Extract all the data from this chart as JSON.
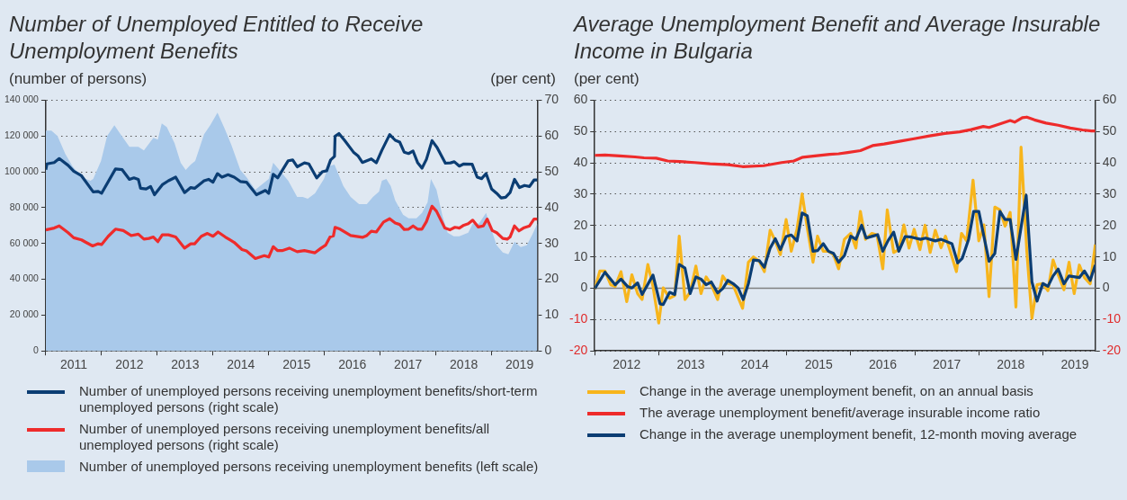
{
  "chart_data": [
    {
      "type": "line",
      "title": "Number of Unemployed Entitled to Receive Unemployment Benefits",
      "ylabel": "(number of persons)",
      "y2label": "(per cent)",
      "xlim": [
        2011,
        2019.82
      ],
      "xticks": [
        {
          "value": 2011,
          "label": null
        },
        {
          "value": 2011.5,
          "label": "2011"
        },
        {
          "value": 2012,
          "label": null
        },
        {
          "value": 2012.5,
          "label": "2012"
        },
        {
          "value": 2013,
          "label": null
        },
        {
          "value": 2013.5,
          "label": "2013"
        },
        {
          "value": 2014,
          "label": null
        },
        {
          "value": 2014.5,
          "label": "2014"
        },
        {
          "value": 2015,
          "label": null
        },
        {
          "value": 2015.5,
          "label": "2015"
        },
        {
          "value": 2016,
          "label": null
        },
        {
          "value": 2016.5,
          "label": "2016"
        },
        {
          "value": 2017,
          "label": null
        },
        {
          "value": 2017.5,
          "label": "2017"
        },
        {
          "value": 2018,
          "label": null
        },
        {
          "value": 2018.5,
          "label": "2018"
        },
        {
          "value": 2019,
          "label": null
        },
        {
          "value": 2019.5,
          "label": "2019"
        }
      ],
      "ylim": [
        0,
        140000
      ],
      "yticks": [
        0,
        {
          "value": 20000,
          "label": "20 000"
        },
        {
          "value": 40000,
          "label": "40 000"
        },
        {
          "value": 60000,
          "label": "60 000"
        },
        {
          "value": 80000,
          "label": "80 000"
        },
        {
          "value": 100000,
          "label": "100 000"
        },
        {
          "value": 120000,
          "label": "120 000"
        },
        {
          "value": 140000,
          "label": "140 000"
        }
      ],
      "y2lim": [
        0,
        70
      ],
      "y2ticks": [
        0,
        10,
        20,
        30,
        40,
        50,
        60,
        70
      ],
      "grid": "y",
      "legend": "bottom",
      "series": [
        {
          "name": "Number of unemployed persons receiving unemployment benefits/short-term unemployed persons (right scale)",
          "type": "line",
          "axis": "y2",
          "color": "#0b3d73",
          "x": [
            2011.0,
            2011.02,
            2011.15,
            2011.24,
            2011.4,
            2011.5,
            2011.64,
            2011.85,
            2011.94,
            2012.0,
            2012.25,
            2012.37,
            2012.5,
            2012.58,
            2012.66,
            2012.7,
            2012.8,
            2012.88,
            2012.95,
            2013.09,
            2013.2,
            2013.33,
            2013.49,
            2013.6,
            2013.67,
            2013.84,
            2013.92,
            2014.0,
            2014.08,
            2014.16,
            2014.27,
            2014.38,
            2014.49,
            2014.6,
            2014.78,
            2014.94,
            2015.0,
            2015.08,
            2015.16,
            2015.35,
            2015.43,
            2015.51,
            2015.64,
            2015.72,
            2015.86,
            2015.96,
            2016.04,
            2016.11,
            2016.18,
            2016.19,
            2016.26,
            2016.36,
            2016.52,
            2016.6,
            2016.68,
            2016.84,
            2016.93,
            2017.03,
            2017.17,
            2017.27,
            2017.35,
            2017.43,
            2017.51,
            2017.59,
            2017.67,
            2017.75,
            2017.83,
            2017.93,
            2018.02,
            2018.17,
            2018.26,
            2018.33,
            2018.42,
            2018.5,
            2018.65,
            2018.74,
            2018.82,
            2018.9,
            2019.0,
            2019.09,
            2019.17,
            2019.25,
            2019.33,
            2019.41,
            2019.5,
            2019.59,
            2019.68,
            2019.76,
            2019.82
          ],
          "values": [
            50.6,
            52.2,
            52.6,
            53.7,
            51.8,
            50.2,
            48.9,
            44.4,
            44.5,
            44.0,
            50.8,
            50.6,
            47.9,
            48.3,
            47.9,
            45.4,
            45.2,
            45.9,
            43.6,
            46.4,
            47.5,
            48.5,
            44.2,
            45.6,
            45.4,
            47.5,
            47.9,
            47.1,
            49.5,
            48.5,
            49.2,
            48.5,
            47.3,
            47.1,
            43.6,
            44.8,
            44.0,
            49.3,
            48.3,
            53.1,
            53.3,
            51.4,
            52.5,
            52.2,
            48.3,
            50.0,
            50.3,
            53.3,
            54.3,
            59.9,
            60.7,
            58.8,
            55.5,
            54.5,
            52.6,
            53.6,
            52.5,
            56.0,
            60.4,
            58.8,
            58.3,
            55.5,
            55.1,
            55.8,
            52.6,
            51.0,
            53.5,
            58.7,
            56.8,
            52.4,
            52.5,
            52.8,
            51.6,
            52.2,
            52.1,
            48.5,
            48.1,
            49.5,
            45.2,
            44.0,
            42.7,
            42.9,
            44.2,
            47.9,
            45.6,
            46.2,
            45.9,
            47.7,
            47.7
          ]
        },
        {
          "name": "Number of unemployed persons receiving unemployment benefits/all unemployed persons (right scale)",
          "type": "line",
          "axis": "y2",
          "color": "#ee2b2b",
          "x": [
            2011.0,
            2011.15,
            2011.24,
            2011.4,
            2011.5,
            2011.64,
            2011.72,
            2011.84,
            2011.94,
            2012.0,
            2012.12,
            2012.25,
            2012.39,
            2012.53,
            2012.66,
            2012.76,
            2012.85,
            2012.93,
            2013.01,
            2013.09,
            2013.2,
            2013.33,
            2013.49,
            2013.6,
            2013.67,
            2013.79,
            2013.9,
            2014.0,
            2014.09,
            2014.22,
            2014.38,
            2014.52,
            2014.6,
            2014.76,
            2014.92,
            2015.0,
            2015.08,
            2015.16,
            2015.24,
            2015.37,
            2015.51,
            2015.64,
            2015.83,
            2015.94,
            2016.02,
            2016.1,
            2016.16,
            2016.19,
            2016.28,
            2016.47,
            2016.68,
            2016.76,
            2016.84,
            2016.93,
            2017.06,
            2017.17,
            2017.27,
            2017.35,
            2017.43,
            2017.51,
            2017.59,
            2017.67,
            2017.75,
            2017.83,
            2017.93,
            2018.01,
            2018.16,
            2018.25,
            2018.34,
            2018.42,
            2018.5,
            2018.58,
            2018.66,
            2018.76,
            2018.85,
            2018.92,
            2019.01,
            2019.09,
            2019.2,
            2019.28,
            2019.33,
            2019.41,
            2019.49,
            2019.57,
            2019.68,
            2019.76,
            2019.82
          ],
          "values": [
            33.8,
            34.3,
            34.9,
            33.0,
            31.6,
            31.0,
            30.3,
            29.3,
            29.9,
            29.7,
            32.0,
            34.0,
            33.6,
            32.2,
            32.6,
            31.2,
            31.4,
            31.8,
            30.5,
            32.4,
            32.4,
            31.8,
            28.7,
            29.9,
            29.9,
            32.0,
            32.8,
            32.0,
            33.2,
            31.8,
            30.3,
            28.3,
            27.9,
            25.8,
            26.6,
            26.2,
            29.1,
            28.0,
            28.0,
            28.7,
            27.7,
            28.0,
            27.4,
            28.7,
            29.5,
            31.8,
            32.1,
            34.5,
            34.0,
            32.2,
            31.7,
            32.2,
            33.4,
            33.2,
            36.0,
            36.9,
            35.7,
            35.3,
            33.9,
            34.0,
            34.9,
            34.0,
            34.0,
            36.1,
            40.4,
            39.0,
            34.3,
            33.8,
            34.5,
            34.3,
            35.1,
            35.5,
            36.5,
            34.6,
            34.9,
            36.8,
            33.6,
            33.0,
            31.4,
            31.2,
            31.8,
            34.9,
            33.5,
            34.3,
            34.9,
            36.8,
            36.8
          ]
        },
        {
          "name": "Number of unemployed persons receiving unemployment benefits (left scale)",
          "type": "area",
          "axis": "y",
          "color": "#a9c9ea",
          "x": [
            2011.0,
            2011.1,
            2011.21,
            2011.35,
            2011.48,
            2011.64,
            2011.8,
            2011.85,
            2011.99,
            2012.1,
            2012.23,
            2012.34,
            2012.5,
            2012.66,
            2012.76,
            2012.93,
            2013.01,
            2013.08,
            2013.17,
            2013.31,
            2013.42,
            2013.51,
            2013.6,
            2013.68,
            2013.84,
            2013.95,
            2014.08,
            2014.21,
            2014.33,
            2014.49,
            2014.6,
            2014.76,
            2014.92,
            2015.0,
            2015.08,
            2015.19,
            2015.35,
            2015.51,
            2015.61,
            2015.7,
            2015.83,
            2015.99,
            2016.07,
            2016.18,
            2016.34,
            2016.47,
            2016.62,
            2016.76,
            2016.87,
            2016.98,
            2017.03,
            2017.11,
            2017.19,
            2017.27,
            2017.41,
            2017.51,
            2017.65,
            2017.75,
            2017.85,
            2017.91,
            2018.01,
            2018.12,
            2018.21,
            2018.32,
            2018.42,
            2018.58,
            2018.66,
            2018.77,
            2018.9,
            2018.98,
            2019.09,
            2019.2,
            2019.3,
            2019.41,
            2019.52,
            2019.63,
            2019.73,
            2019.82
          ],
          "values": [
            123000,
            123000,
            120000,
            110000,
            103000,
            97000,
            95000,
            96000,
            106000,
            120000,
            126000,
            121000,
            114000,
            114000,
            112000,
            119000,
            118000,
            127000,
            125000,
            116000,
            105000,
            101000,
            104000,
            106000,
            121000,
            126000,
            133000,
            124000,
            115000,
            101000,
            97000,
            90000,
            94000,
            96000,
            105000,
            101000,
            95000,
            86000,
            86000,
            85000,
            88000,
            96000,
            103000,
            104000,
            92000,
            86000,
            82000,
            82000,
            86000,
            89000,
            95000,
            96000,
            92000,
            84000,
            76000,
            74000,
            74000,
            77000,
            83000,
            96000,
            90000,
            75000,
            66000,
            64000,
            64000,
            66000,
            71000,
            71000,
            77000,
            69000,
            59000,
            55000,
            54000,
            61000,
            58000,
            59000,
            65000,
            71000
          ]
        }
      ]
    },
    {
      "type": "line",
      "title": "Average Unemployment Benefit and Average Insurable Income in Bulgaria",
      "ylabel": "(per cent)",
      "xlim": [
        2012,
        2019.82
      ],
      "xticks": [
        {
          "value": 2012,
          "label": null
        },
        {
          "value": 2012.5,
          "label": "2012"
        },
        {
          "value": 2013,
          "label": null
        },
        {
          "value": 2013.5,
          "label": "2013"
        },
        {
          "value": 2014,
          "label": null
        },
        {
          "value": 2014.5,
          "label": "2014"
        },
        {
          "value": 2015,
          "label": null
        },
        {
          "value": 2015.5,
          "label": "2015"
        },
        {
          "value": 2016,
          "label": null
        },
        {
          "value": 2016.5,
          "label": "2016"
        },
        {
          "value": 2017,
          "label": null
        },
        {
          "value": 2017.5,
          "label": "2017"
        },
        {
          "value": 2018,
          "label": null
        },
        {
          "value": 2018.5,
          "label": "2018"
        },
        {
          "value": 2019,
          "label": null
        },
        {
          "value": 2019.5,
          "label": "2019"
        }
      ],
      "ylim": [
        -20,
        60
      ],
      "yticks": [
        -20,
        -10,
        0,
        10,
        20,
        30,
        40,
        50,
        60
      ],
      "y2lim": [
        -20,
        60
      ],
      "y2ticks": [
        -20,
        -10,
        0,
        10,
        20,
        30,
        40,
        50,
        60
      ],
      "grid": "y",
      "legend": "bottom",
      "ref_lines": [
        {
          "axis": "y",
          "value": 0,
          "color": "#808080"
        }
      ],
      "series": [
        {
          "name": "Change in the average unemployment benefit, on an annual basis",
          "type": "line",
          "color": "#f7b51c",
          "x": [
            2012.0,
            2012.08,
            2012.16,
            2012.25,
            2012.32,
            2012.41,
            2012.5,
            2012.58,
            2012.67,
            2012.74,
            2012.83,
            2012.91,
            2013.0,
            2013.07,
            2013.17,
            2013.25,
            2013.32,
            2013.41,
            2013.49,
            2013.58,
            2013.66,
            2013.74,
            2013.82,
            2013.92,
            2014.0,
            2014.08,
            2014.16,
            2014.31,
            2014.4,
            2014.48,
            2014.57,
            2014.65,
            2014.74,
            2014.82,
            2014.9,
            2014.99,
            2015.07,
            2015.16,
            2015.24,
            2015.32,
            2015.41,
            2015.48,
            2015.57,
            2015.65,
            2015.73,
            2015.81,
            2015.9,
            2016.0,
            2016.08,
            2016.15,
            2016.23,
            2016.33,
            2016.41,
            2016.5,
            2016.57,
            2016.67,
            2016.75,
            2016.83,
            2016.91,
            2016.99,
            2017.08,
            2017.16,
            2017.24,
            2017.32,
            2017.41,
            2017.48,
            2017.56,
            2017.65,
            2017.73,
            2017.81,
            2017.91,
            2018.0,
            2018.08,
            2018.16,
            2018.25,
            2018.33,
            2018.41,
            2018.49,
            2018.58,
            2018.66,
            2018.75,
            2018.83,
            2018.91,
            2019.0,
            2019.08,
            2019.16,
            2019.24,
            2019.33,
            2019.41,
            2019.49,
            2019.57,
            2019.65,
            2019.74,
            2019.82
          ],
          "values": [
            -0.3,
            5.5,
            5.5,
            1.1,
            0.6,
            5.3,
            -4.3,
            4.3,
            -1.7,
            -3.6,
            7.6,
            0.6,
            -11.1,
            0.1,
            -3.2,
            -2.3,
            16.6,
            -3.6,
            -1.3,
            7.1,
            -1.7,
            3.6,
            1.1,
            -3.6,
            3.9,
            1.5,
            1.1,
            -6.4,
            8.3,
            10.0,
            8.6,
            5.3,
            18.5,
            15.1,
            10.7,
            21.9,
            11.8,
            18.8,
            30.1,
            19.3,
            8.3,
            16.6,
            11.8,
            11.8,
            10.7,
            6.2,
            15.6,
            17.5,
            12.8,
            24.5,
            15.6,
            17.5,
            17.0,
            6.2,
            25.0,
            11.4,
            12.3,
            20.2,
            12.8,
            18.8,
            12.3,
            20.1,
            11.4,
            18.5,
            12.9,
            16.6,
            11.4,
            5.3,
            17.5,
            15.1,
            34.5,
            15.1,
            20.2,
            -2.7,
            25.9,
            25.0,
            19.8,
            24.2,
            -6.0,
            45.0,
            11.8,
            -9.6,
            1.1,
            1.5,
            -0.8,
            9.0,
            4.3,
            -0.5,
            8.3,
            -1.7,
            7.4,
            3.4,
            1.4,
            13.9
          ]
        },
        {
          "name": "The average unemployment benefit/average insurable income ratio",
          "type": "line",
          "color": "#ee2b2b",
          "x": [
            2012.0,
            2012.16,
            2012.39,
            2012.63,
            2012.77,
            2012.96,
            2013.14,
            2013.33,
            2013.56,
            2013.8,
            2014.08,
            2014.31,
            2014.64,
            2014.92,
            2015.11,
            2015.25,
            2015.44,
            2015.67,
            2015.81,
            2015.95,
            2016.15,
            2016.34,
            2016.52,
            2016.76,
            2016.99,
            2017.23,
            2017.47,
            2017.7,
            2017.88,
            2018.07,
            2018.16,
            2018.3,
            2018.49,
            2018.56,
            2018.68,
            2018.75,
            2018.87,
            2019.05,
            2019.24,
            2019.43,
            2019.62,
            2019.76,
            2019.82
          ],
          "values": [
            42.4,
            42.5,
            42.2,
            41.9,
            41.6,
            41.5,
            40.6,
            40.4,
            40.1,
            39.7,
            39.4,
            38.8,
            39.1,
            40.1,
            40.6,
            41.8,
            42.2,
            42.7,
            42.9,
            43.3,
            43.9,
            45.5,
            46.0,
            46.9,
            47.7,
            48.6,
            49.4,
            49.9,
            50.6,
            51.6,
            51.3,
            52.2,
            53.5,
            53.0,
            54.4,
            54.6,
            53.7,
            52.7,
            52.0,
            51.1,
            50.5,
            50.2,
            50.2
          ]
        },
        {
          "name": "Change in the average unemployment benefit, 12-month moving average",
          "type": "line",
          "color": "#0b3d73",
          "x": [
            2012.0,
            2012.16,
            2012.32,
            2012.41,
            2012.51,
            2012.58,
            2012.67,
            2012.74,
            2012.91,
            2013.02,
            2013.07,
            2013.17,
            2013.25,
            2013.32,
            2013.41,
            2013.49,
            2013.58,
            2013.66,
            2013.74,
            2013.82,
            2013.92,
            2014.0,
            2014.08,
            2014.16,
            2014.24,
            2014.32,
            2014.4,
            2014.48,
            2014.57,
            2014.65,
            2014.74,
            2014.82,
            2014.9,
            2014.99,
            2015.07,
            2015.16,
            2015.24,
            2015.32,
            2015.41,
            2015.48,
            2015.57,
            2015.65,
            2015.73,
            2015.81,
            2015.9,
            2016.0,
            2016.08,
            2016.17,
            2016.24,
            2016.34,
            2016.42,
            2016.5,
            2016.58,
            2016.67,
            2016.75,
            2016.85,
            2016.95,
            2017.09,
            2017.17,
            2017.32,
            2017.41,
            2017.58,
            2017.67,
            2017.74,
            2017.84,
            2017.92,
            2018.0,
            2018.08,
            2018.16,
            2018.25,
            2018.33,
            2018.41,
            2018.49,
            2018.58,
            2018.74,
            2018.83,
            2018.91,
            2019.0,
            2019.08,
            2019.16,
            2019.24,
            2019.33,
            2019.41,
            2019.57,
            2019.65,
            2019.74,
            2019.82
          ],
          "values": [
            -0.1,
            5.1,
            1.1,
            2.9,
            0.6,
            0.1,
            1.7,
            -2.0,
            4.2,
            -5.0,
            -5.2,
            -1.3,
            -2.0,
            7.6,
            6.4,
            -1.7,
            3.6,
            2.9,
            1.1,
            2.0,
            -1.5,
            -0.1,
            2.5,
            1.5,
            0.1,
            -3.6,
            1.4,
            9.0,
            8.8,
            6.7,
            12.8,
            15.8,
            12.3,
            16.5,
            17.0,
            15.1,
            24.0,
            23.1,
            11.8,
            12.0,
            14.2,
            11.8,
            11.1,
            8.3,
            10.4,
            16.6,
            15.6,
            20.1,
            16.0,
            16.6,
            17.1,
            11.8,
            15.1,
            17.9,
            11.8,
            16.5,
            16.3,
            15.6,
            16.0,
            15.1,
            15.6,
            14.2,
            8.1,
            9.5,
            15.6,
            24.5,
            24.5,
            16.5,
            8.6,
            11.1,
            24.5,
            21.9,
            21.9,
            9.2,
            29.6,
            2.0,
            -4.1,
            1.5,
            0.6,
            3.9,
            6.1,
            1.4,
            3.9,
            3.4,
            5.5,
            2.5,
            7.4
          ]
        }
      ]
    }
  ]
}
